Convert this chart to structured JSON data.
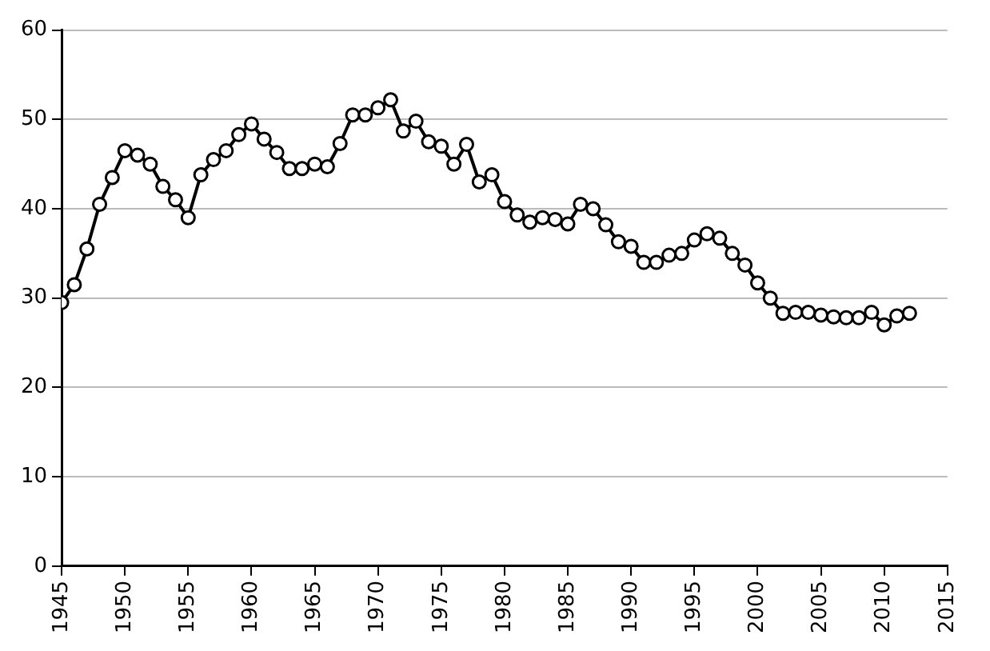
{
  "chart_data": {
    "type": "line",
    "x": [
      1945,
      1946,
      1947,
      1948,
      1949,
      1950,
      1951,
      1952,
      1953,
      1954,
      1955,
      1956,
      1957,
      1958,
      1959,
      1960,
      1961,
      1962,
      1963,
      1964,
      1965,
      1966,
      1967,
      1968,
      1969,
      1970,
      1971,
      1972,
      1973,
      1974,
      1975,
      1976,
      1977,
      1978,
      1979,
      1980,
      1981,
      1982,
      1983,
      1984,
      1985,
      1986,
      1987,
      1988,
      1989,
      1990,
      1991,
      1992,
      1993,
      1994,
      1995,
      1996,
      1997,
      1998,
      1999,
      2000,
      2001,
      2002,
      2003,
      2004,
      2005,
      2006,
      2007,
      2008,
      2009,
      2010,
      2011,
      2012
    ],
    "series": [
      {
        "color": "#000000",
        "values": [
          29.5,
          31.5,
          35.5,
          40.5,
          43.5,
          46.5,
          46,
          45,
          42.5,
          41,
          39,
          43.8,
          45.5,
          46.5,
          48.3,
          49.5,
          47.8,
          46.3,
          44.5,
          44.5,
          45,
          44.7,
          47.3,
          50.5,
          50.5,
          51.3,
          52.2,
          48.7,
          49.8,
          47.5,
          47,
          45,
          47.2,
          43,
          43.8,
          40.8,
          39.3,
          38.5,
          39,
          38.8,
          38.3,
          40.5,
          40,
          38.2,
          36.3,
          35.8,
          34,
          34,
          34.8,
          35,
          36.5,
          37.2,
          36.7,
          35,
          33.7,
          31.7,
          30,
          28.3,
          28.4,
          28.4,
          28.1,
          27.9,
          27.8,
          27.8,
          28.4,
          27,
          28,
          28.3
        ]
      }
    ],
    "xlim": [
      1945,
      2015
    ],
    "xticks": [
      1945,
      1950,
      1955,
      1960,
      1965,
      1970,
      1975,
      1980,
      1985,
      1990,
      1995,
      2000,
      2005,
      2010,
      2015
    ],
    "ylim": [
      0,
      60
    ],
    "yticks": [
      0,
      10,
      20,
      30,
      40,
      50,
      60
    ],
    "grid": "y",
    "marker": "circle",
    "line_style": "solid"
  }
}
